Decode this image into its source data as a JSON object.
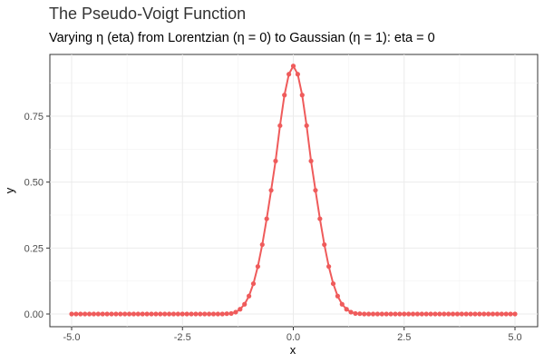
{
  "chart_data": {
    "type": "line",
    "title": "The Pseudo-Voigt Function",
    "subtitle": "Varying η (eta) from Lorentzian (η = 0) to Gaussian (η = 1): eta = 0",
    "xlabel": "x",
    "ylabel": "y",
    "xlim": [
      -5.0,
      5.0
    ],
    "ylim": [
      0.0,
      0.94
    ],
    "xticks": [
      -5.0,
      -2.5,
      0.0,
      2.5,
      5.0
    ],
    "xtick_labels": [
      "-5.0",
      "-2.5",
      "0.0",
      "2.5",
      "5.0"
    ],
    "yticks": [
      0.0,
      0.25,
      0.5,
      0.75
    ],
    "ytick_labels": [
      "0.00",
      "0.25",
      "0.50",
      "0.75"
    ],
    "grid": true,
    "series_color": "#ef5b5b",
    "series": [
      {
        "x": [
          -5.0,
          -4.9,
          -4.8,
          -4.7,
          -4.6,
          -4.5,
          -4.4,
          -4.3,
          -4.2,
          -4.1,
          -4.0,
          -3.9,
          -3.8,
          -3.7,
          -3.6,
          -3.5,
          -3.4,
          -3.3,
          -3.2,
          -3.1,
          -3.0,
          -2.9,
          -2.8,
          -2.7,
          -2.6,
          -2.5,
          -2.4,
          -2.3,
          -2.2,
          -2.1,
          -2.0,
          -1.9,
          -1.8,
          -1.7,
          -1.6,
          -1.5,
          -1.4,
          -1.3,
          -1.2,
          -1.1,
          -1.0,
          -0.9,
          -0.8,
          -0.7,
          -0.6,
          -0.5,
          -0.4,
          -0.3,
          -0.2,
          -0.1,
          0.0,
          0.1,
          0.2,
          0.3,
          0.4,
          0.5,
          0.6,
          0.7,
          0.8,
          0.9,
          1.0,
          1.1,
          1.2,
          1.3,
          1.4,
          1.5,
          1.6,
          1.7,
          1.8,
          1.9,
          2.0,
          2.1,
          2.2,
          2.3,
          2.4,
          2.5,
          2.6,
          2.7,
          2.8,
          2.9,
          3.0,
          3.1,
          3.2,
          3.3,
          3.4,
          3.5,
          3.6,
          3.7,
          3.8,
          3.9,
          4.0,
          4.1,
          4.2,
          4.3,
          4.4,
          4.5,
          4.6,
          4.7,
          4.8,
          4.9,
          5.0
        ],
        "y": [
          0.0,
          0.0,
          0.0,
          0.0,
          0.0,
          0.0,
          0.0,
          0.0,
          0.0,
          0.0,
          0.0,
          0.0,
          0.0,
          0.0,
          0.0,
          0.0,
          0.0,
          0.0,
          0.0,
          0.0,
          0.0,
          0.0,
          0.0,
          0.0,
          0.0,
          0.0,
          0.0,
          0.0,
          0.0,
          0.0,
          0.0,
          0.0,
          0.0,
          0.0,
          0.0,
          0.001,
          0.002,
          0.007,
          0.018,
          0.037,
          0.068,
          0.115,
          0.18,
          0.263,
          0.361,
          0.469,
          0.58,
          0.714,
          0.83,
          0.909,
          0.94,
          0.909,
          0.83,
          0.714,
          0.58,
          0.469,
          0.361,
          0.263,
          0.18,
          0.115,
          0.068,
          0.037,
          0.018,
          0.007,
          0.002,
          0.001,
          0.0,
          0.0,
          0.0,
          0.0,
          0.0,
          0.0,
          0.0,
          0.0,
          0.0,
          0.0,
          0.0,
          0.0,
          0.0,
          0.0,
          0.0,
          0.0,
          0.0,
          0.0,
          0.0,
          0.0,
          0.0,
          0.0,
          0.0,
          0.0,
          0.0,
          0.0,
          0.0,
          0.0,
          0.0,
          0.0,
          0.0,
          0.0,
          0.0,
          0.0,
          0.0
        ]
      }
    ]
  }
}
